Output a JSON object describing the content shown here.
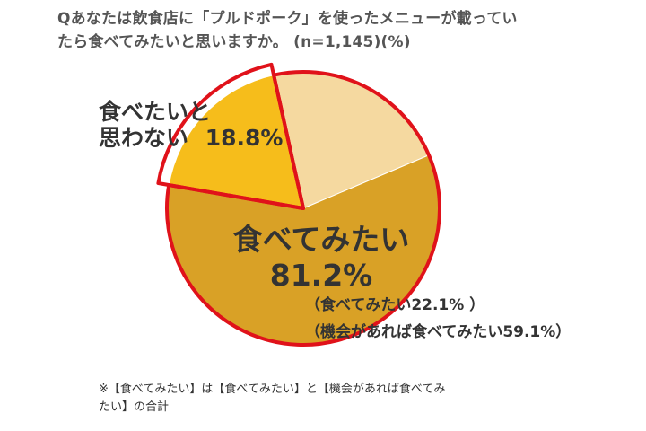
{
  "title": {
    "line1": "Qあなたは飲食店に「プルドポーク」を使ったメニューが載ってい",
    "line2": "たら食べてみたいと思いますか。 (n=1,145)(%)"
  },
  "chart_data": {
    "type": "pie",
    "title": "Qあなたは飲食店に「プルドポーク」を使ったメニューが載っていたら食べてみたいと思いますか。 (n=1,145)(%)",
    "unit": "%",
    "slices": [
      {
        "label": "食べてみたい",
        "value": 22.1,
        "color": "#f5d9a0"
      },
      {
        "label": "機会があれば食べてみたい",
        "value": 59.1,
        "color": "#d9a126"
      },
      {
        "label": "食べたいと思わない",
        "value": 18.8,
        "color": "#f6bd1b"
      }
    ],
    "groups": [
      {
        "label": "食べてみたい",
        "value_text": "81.2%",
        "members": [
          "食べてみたい",
          "機会があれば食べてみたい"
        ],
        "outline_color": "#e0121a"
      },
      {
        "label": "食べたいと思わない",
        "value_text": "18.8%",
        "members": [
          "食べたいと思わない"
        ],
        "outline_color": "#e0121a"
      }
    ]
  },
  "labels": {
    "not_want_line1": "食べたいと",
    "not_want_line2": "思わない",
    "not_want_value": "18.8%",
    "want_label": "食べてみたい",
    "want_value": "81.2%",
    "detail1": "（食べてみたい22.1% ）",
    "detail2": "（機会があれば食べてみたい59.1%）"
  },
  "footnote": {
    "line1": "※【食べてみたい】は【食べてみたい】と【機会があれば食べてみ",
    "line2": "たい】の合計"
  }
}
